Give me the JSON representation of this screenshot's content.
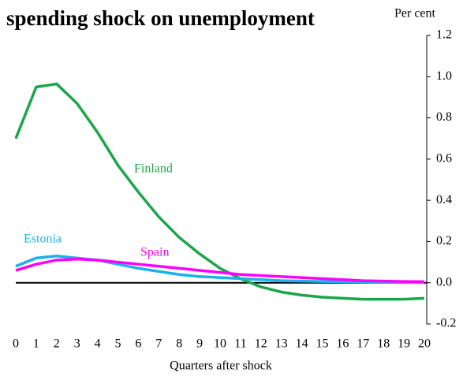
{
  "chart_data": {
    "type": "line",
    "title": "spending shock on unemployment",
    "y_label": "Per cent",
    "x_label": "Quarters after shock",
    "x": [
      0,
      1,
      2,
      3,
      4,
      5,
      6,
      7,
      8,
      9,
      10,
      11,
      12,
      13,
      14,
      15,
      16,
      17,
      18,
      19,
      20
    ],
    "series": [
      {
        "name": "Finland",
        "color": "#1aa64a",
        "values": [
          0.7,
          0.95,
          0.965,
          0.87,
          0.73,
          0.57,
          0.44,
          0.32,
          0.22,
          0.14,
          0.07,
          0.02,
          -0.02,
          -0.045,
          -0.06,
          -0.07,
          -0.075,
          -0.08,
          -0.08,
          -0.08,
          -0.075
        ]
      },
      {
        "name": "Estonia",
        "color": "#1ab2e8",
        "values": [
          0.08,
          0.12,
          0.13,
          0.12,
          0.11,
          0.09,
          0.07,
          0.055,
          0.04,
          0.03,
          0.025,
          0.02,
          0.015,
          0.01,
          0.008,
          0.006,
          0.005,
          0.004,
          0.003,
          0.002,
          0.002
        ]
      },
      {
        "name": "Spain",
        "color": "#ff00ff",
        "values": [
          0.06,
          0.09,
          0.11,
          0.115,
          0.11,
          0.1,
          0.09,
          0.08,
          0.07,
          0.06,
          0.05,
          0.04,
          0.035,
          0.03,
          0.025,
          0.02,
          0.015,
          0.01,
          0.008,
          0.006,
          0.005
        ]
      }
    ],
    "xlim": [
      0,
      20
    ],
    "xticks": [
      0,
      1,
      2,
      3,
      4,
      5,
      6,
      7,
      8,
      9,
      10,
      11,
      12,
      13,
      14,
      15,
      16,
      17,
      18,
      19,
      20
    ],
    "ylim": [
      -0.2,
      1.2
    ],
    "yticks": [
      -0.2,
      {
        "value": 0,
        "label": "0.0"
      },
      0.2,
      0.4,
      0.6,
      0.8,
      {
        "value": 1,
        "label": "1.0"
      },
      1.2
    ],
    "y_axis_side": "right",
    "grid": false
  }
}
